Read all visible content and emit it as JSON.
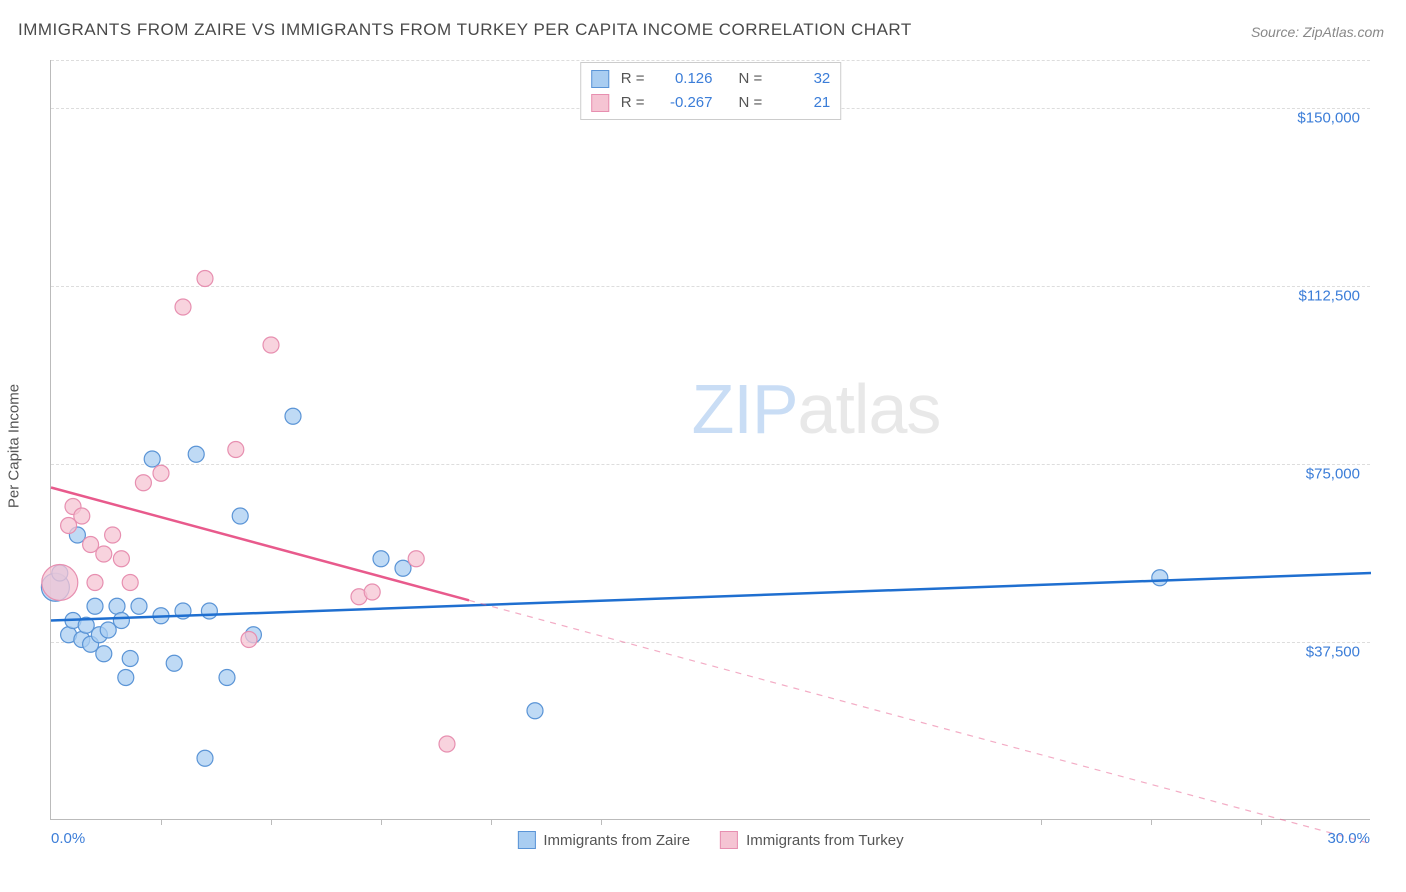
{
  "title": "IMMIGRANTS FROM ZAIRE VS IMMIGRANTS FROM TURKEY PER CAPITA INCOME CORRELATION CHART",
  "source_label": "Source: ZipAtlas.com",
  "watermark": {
    "zip": "ZIP",
    "atlas": "atlas"
  },
  "yaxis_label": "Per Capita Income",
  "chart": {
    "type": "scatter",
    "xlim": [
      0,
      30
    ],
    "ylim": [
      0,
      160000
    ],
    "x_format": "percent",
    "y_format": "currency",
    "background_color": "#ffffff",
    "grid_color": "#dddddd",
    "axis_color": "#bbbbbb",
    "tick_label_color": "#3b7dd8",
    "yticks": [
      {
        "v": 37500,
        "label": "$37,500"
      },
      {
        "v": 75000,
        "label": "$75,000"
      },
      {
        "v": 112500,
        "label": "$112,500"
      },
      {
        "v": 150000,
        "label": "$150,000"
      }
    ],
    "xticks_minor": [
      2.5,
      5,
      7.5,
      10,
      12.5,
      22.5,
      25,
      27.5
    ],
    "xaxis_min_label": "0.0%",
    "xaxis_max_label": "30.0%",
    "marker_radius": 8,
    "marker_stroke_width": 1.2,
    "trend_stroke_width": 2.5
  },
  "series": [
    {
      "name": "Immigrants from Zaire",
      "key": "zaire",
      "color_fill": "#a9cdf1",
      "color_stroke": "#5a94d6",
      "color_line": "#1f6fd0",
      "R": "0.126",
      "N": "32",
      "trend": {
        "x1": 0,
        "y1": 42000,
        "x2": 30,
        "y2": 52000,
        "solid_until_x": 30
      },
      "points": [
        {
          "x": 0.1,
          "y": 49000,
          "r": 14
        },
        {
          "x": 0.2,
          "y": 52000
        },
        {
          "x": 0.4,
          "y": 39000
        },
        {
          "x": 0.5,
          "y": 42000
        },
        {
          "x": 0.6,
          "y": 60000
        },
        {
          "x": 0.7,
          "y": 38000
        },
        {
          "x": 0.8,
          "y": 41000
        },
        {
          "x": 0.9,
          "y": 37000
        },
        {
          "x": 1.0,
          "y": 45000
        },
        {
          "x": 1.1,
          "y": 39000
        },
        {
          "x": 1.2,
          "y": 35000
        },
        {
          "x": 1.3,
          "y": 40000
        },
        {
          "x": 1.5,
          "y": 45000
        },
        {
          "x": 1.6,
          "y": 42000
        },
        {
          "x": 1.7,
          "y": 30000
        },
        {
          "x": 1.8,
          "y": 34000
        },
        {
          "x": 2.0,
          "y": 45000
        },
        {
          "x": 2.3,
          "y": 76000
        },
        {
          "x": 2.5,
          "y": 43000
        },
        {
          "x": 2.8,
          "y": 33000
        },
        {
          "x": 3.0,
          "y": 44000
        },
        {
          "x": 3.3,
          "y": 77000
        },
        {
          "x": 3.5,
          "y": 13000
        },
        {
          "x": 3.6,
          "y": 44000
        },
        {
          "x": 4.0,
          "y": 30000
        },
        {
          "x": 4.3,
          "y": 64000
        },
        {
          "x": 4.6,
          "y": 39000
        },
        {
          "x": 5.5,
          "y": 85000
        },
        {
          "x": 7.5,
          "y": 55000
        },
        {
          "x": 8.0,
          "y": 53000
        },
        {
          "x": 11.0,
          "y": 23000
        },
        {
          "x": 25.2,
          "y": 51000
        }
      ]
    },
    {
      "name": "Immigrants from Turkey",
      "key": "turkey",
      "color_fill": "#f5c4d3",
      "color_stroke": "#e78fb0",
      "color_line": "#e85a8c",
      "R": "-0.267",
      "N": "21",
      "trend": {
        "x1": 0,
        "y1": 70000,
        "x2": 30,
        "y2": -5000,
        "solid_until_x": 9.5
      },
      "points": [
        {
          "x": 0.2,
          "y": 50000,
          "r": 18
        },
        {
          "x": 0.4,
          "y": 62000
        },
        {
          "x": 0.5,
          "y": 66000
        },
        {
          "x": 0.7,
          "y": 64000
        },
        {
          "x": 0.9,
          "y": 58000
        },
        {
          "x": 1.0,
          "y": 50000
        },
        {
          "x": 1.2,
          "y": 56000
        },
        {
          "x": 1.4,
          "y": 60000
        },
        {
          "x": 1.6,
          "y": 55000
        },
        {
          "x": 1.8,
          "y": 50000
        },
        {
          "x": 2.1,
          "y": 71000
        },
        {
          "x": 2.5,
          "y": 73000
        },
        {
          "x": 3.0,
          "y": 108000
        },
        {
          "x": 3.5,
          "y": 114000
        },
        {
          "x": 4.2,
          "y": 78000
        },
        {
          "x": 4.5,
          "y": 38000
        },
        {
          "x": 5.0,
          "y": 100000
        },
        {
          "x": 7.0,
          "y": 47000
        },
        {
          "x": 7.3,
          "y": 48000
        },
        {
          "x": 8.3,
          "y": 55000
        },
        {
          "x": 9.0,
          "y": 16000
        }
      ]
    }
  ],
  "legend_top": {
    "r_label": "R =",
    "n_label": "N ="
  },
  "legend_bottom_label_1": "Immigrants from Zaire",
  "legend_bottom_label_2": "Immigrants from Turkey"
}
